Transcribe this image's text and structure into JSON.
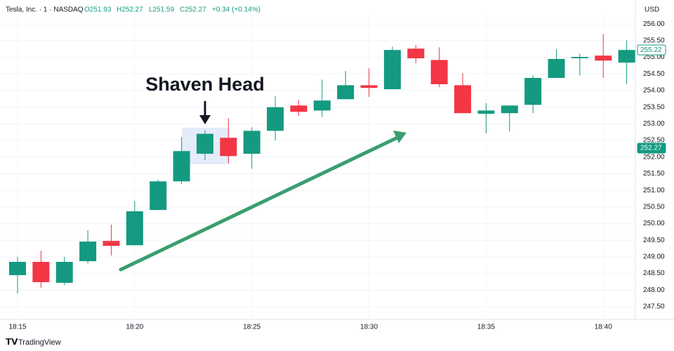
{
  "header": {
    "symbol": "Tesla, Inc. · 1 · NASDAQ",
    "ohlc": [
      "O251.93",
      "H252.27",
      "L251.59",
      "C252.27"
    ],
    "change": "+0.34 (+0.14%)"
  },
  "footer": "TradingView",
  "chart_data": {
    "type": "candlestick",
    "currency": "USD",
    "annotation": "Shaven Head",
    "categories": [
      "18:15",
      null,
      null,
      null,
      null,
      "18:20",
      null,
      null,
      null,
      null,
      "18:25",
      null,
      null,
      null,
      null,
      "18:30",
      null,
      null,
      null,
      null,
      "18:35",
      null,
      null,
      null,
      null,
      "18:40",
      null
    ],
    "open": [
      248.45,
      248.85,
      248.22,
      248.87,
      249.48,
      249.35,
      250.41,
      251.27,
      252.1,
      252.58,
      252.1,
      252.79,
      253.55,
      253.4,
      253.74,
      254.16,
      254.04,
      255.26,
      254.92,
      254.16,
      253.3,
      253.32,
      253.57,
      254.38,
      254.97,
      255.05,
      254.84
    ],
    "high": [
      249.0,
      249.19,
      249.0,
      249.8,
      249.97,
      250.68,
      251.32,
      252.6,
      252.81,
      253.17,
      252.9,
      253.83,
      253.72,
      254.33,
      254.59,
      254.67,
      255.32,
      255.37,
      255.3,
      254.52,
      253.62,
      253.55,
      254.46,
      255.24,
      255.11,
      255.7,
      255.51
    ],
    "low": [
      247.9,
      248.07,
      248.15,
      248.8,
      249.04,
      249.35,
      250.4,
      251.19,
      251.91,
      251.82,
      251.65,
      252.5,
      253.24,
      253.2,
      253.74,
      253.81,
      254.04,
      254.82,
      254.1,
      253.32,
      252.71,
      252.77,
      253.32,
      254.38,
      254.46,
      254.38,
      254.19
    ],
    "close": [
      248.85,
      248.24,
      248.85,
      249.46,
      249.33,
      250.37,
      251.27,
      252.18,
      252.7,
      252.03,
      252.79,
      253.5,
      253.36,
      253.7,
      254.16,
      254.08,
      255.22,
      254.97,
      254.19,
      253.32,
      253.4,
      253.55,
      254.38,
      254.95,
      255.01,
      254.9,
      255.22
    ],
    "up_color": "#149a80",
    "down_color": "#f23645",
    "price_labels": [
      255.22,
      252.27
    ],
    "ylim": [
      247.12,
      256.3
    ],
    "yticks": [
      {
        "value": 247.5,
        "label": "247.50"
      },
      {
        "value": 248,
        "label": "248.00"
      },
      {
        "value": 248.5,
        "label": "248.50"
      },
      {
        "value": 249,
        "label": "249.00"
      },
      {
        "value": 249.5,
        "label": "249.50"
      },
      {
        "value": 250,
        "label": "250.00"
      },
      {
        "value": 250.5,
        "label": "250.50"
      },
      {
        "value": 251,
        "label": "251.00"
      },
      {
        "value": 251.5,
        "label": "251.50"
      },
      {
        "value": 252,
        "label": "252.00"
      },
      {
        "value": 252.5,
        "label": "252.50"
      },
      {
        "value": 253,
        "label": "253.00"
      },
      {
        "value": 253.5,
        "label": "253.50"
      },
      {
        "value": 254,
        "label": "254.00"
      },
      {
        "value": 254.5,
        "label": "254.50"
      },
      {
        "value": 255,
        "label": "255.00"
      },
      {
        "value": 255.5,
        "label": "255.50"
      },
      {
        "value": 256,
        "label": "256.00"
      }
    ],
    "grid": true
  }
}
